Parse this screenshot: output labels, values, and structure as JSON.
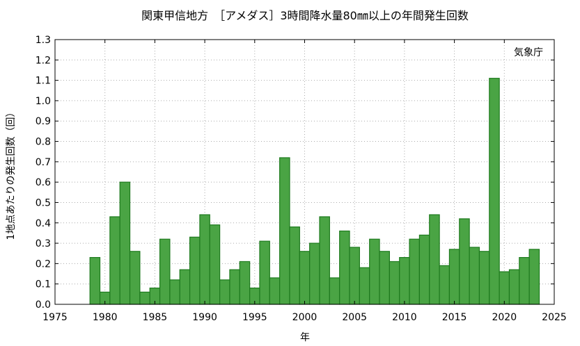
{
  "chart_data": {
    "type": "bar",
    "title": "関東甲信地方　［アメダス］3時間降水量80㎜以上の年間発生回数",
    "xlabel": "年",
    "ylabel": "1地点あたりの発生回数（回）",
    "source": "気象庁",
    "xlim": [
      1975,
      2025
    ],
    "ylim": [
      0,
      1.3
    ],
    "x_ticks": [
      "1975",
      "1980",
      "1985",
      "1990",
      "1995",
      "2000",
      "2005",
      "2010",
      "2015",
      "2020",
      "2025"
    ],
    "y_ticks": [
      "0.0",
      "0.1",
      "0.2",
      "0.3",
      "0.4",
      "0.5",
      "0.6",
      "0.7",
      "0.8",
      "0.9",
      "1.0",
      "1.1",
      "1.2",
      "1.3"
    ],
    "grid": true,
    "categories": [
      1979,
      1980,
      1981,
      1982,
      1983,
      1984,
      1985,
      1986,
      1987,
      1988,
      1989,
      1990,
      1991,
      1992,
      1993,
      1994,
      1995,
      1996,
      1997,
      1998,
      1999,
      2000,
      2001,
      2002,
      2003,
      2004,
      2005,
      2006,
      2007,
      2008,
      2009,
      2010,
      2011,
      2012,
      2013,
      2014,
      2015,
      2016,
      2017,
      2018,
      2019,
      2020,
      2021,
      2022,
      2023
    ],
    "values": [
      0.23,
      0.06,
      0.43,
      0.6,
      0.26,
      0.06,
      0.08,
      0.32,
      0.12,
      0.17,
      0.33,
      0.44,
      0.39,
      0.12,
      0.17,
      0.21,
      0.08,
      0.31,
      0.13,
      0.72,
      0.38,
      0.26,
      0.3,
      0.43,
      0.13,
      0.36,
      0.28,
      0.18,
      0.32,
      0.26,
      0.21,
      0.23,
      0.32,
      0.34,
      0.44,
      0.19,
      0.27,
      0.42,
      0.28,
      0.26,
      1.11,
      0.16,
      0.17,
      0.23,
      0.27
    ],
    "bar_color": "#4aa444",
    "bar_edge_color": "#1e7a1e"
  }
}
